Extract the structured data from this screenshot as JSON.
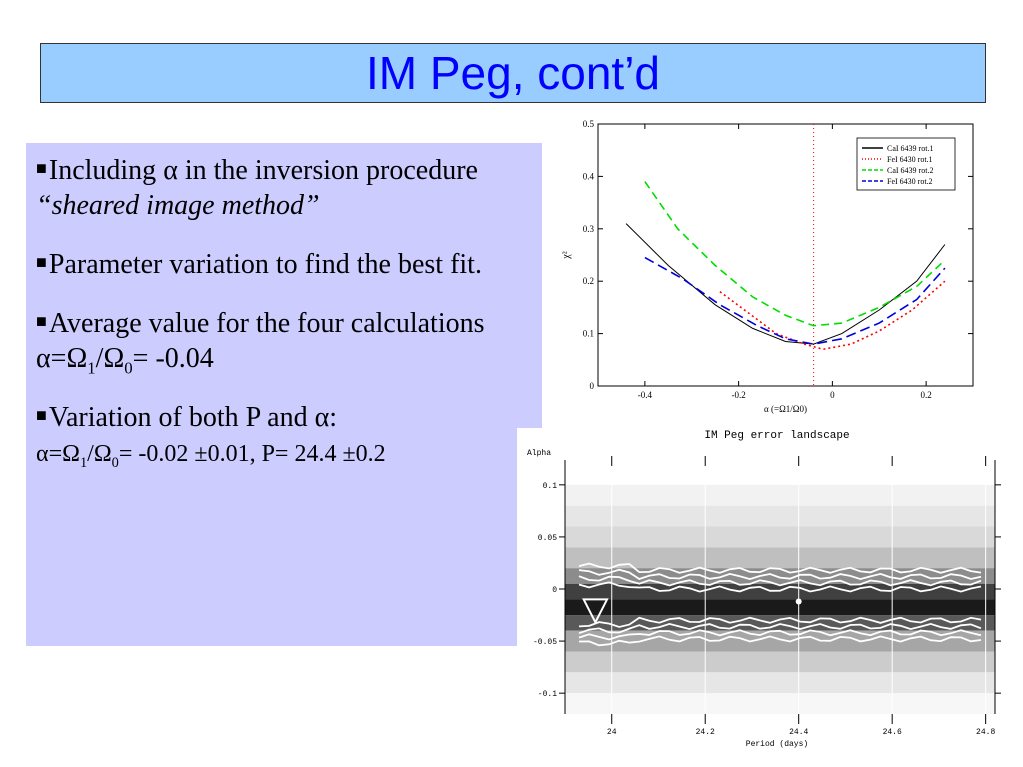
{
  "title": "IM Peg, cont’d",
  "bullets": {
    "b1": {
      "pre": "Including ",
      "alpha": "α",
      "post": " in the inversion procedure",
      "italic": "“sheared image method”"
    },
    "b2": {
      "text": "Parameter variation to find the best fit."
    },
    "b3": {
      "text": "Average value for the four calculations",
      "f_alpha": "α=Ω",
      "f_sub1": "1",
      "f_mid": "/Ω",
      "f_sub0": "0",
      "f_end": "= -0.04"
    },
    "b4": {
      "pre": "Variation of both P and ",
      "alpha": "α",
      "colon": ":",
      "f_alpha": "α=Ω",
      "f_sub1": "1",
      "f_mid": "/Ω",
      "f_sub0": "0",
      "f_end": "= -0.02 ±0.01, P= 24.4 ±0.2"
    }
  },
  "chart_data": [
    {
      "type": "line",
      "title": "",
      "xlabel": "α (=Ω1/Ω0)",
      "ylabel": "χ²",
      "xlim": [
        -0.5,
        0.3
      ],
      "ylim": [
        0,
        0.5
      ],
      "xticks": [
        "-0.4",
        "-0.2",
        "0",
        "0.2"
      ],
      "yticks": [
        "0",
        "0.1",
        "0.2",
        "0.3",
        "0.4",
        "0.5"
      ],
      "vline": -0.04,
      "legend_position": "top-right",
      "series": [
        {
          "name": "CaI 6439 rot.1",
          "color": "#000000",
          "dash": "",
          "x": [
            -0.44,
            -0.35,
            -0.25,
            -0.17,
            -0.1,
            -0.04,
            0.02,
            0.1,
            0.18,
            0.24
          ],
          "y": [
            0.31,
            0.23,
            0.155,
            0.11,
            0.085,
            0.08,
            0.1,
            0.145,
            0.2,
            0.27
          ]
        },
        {
          "name": "FeI 6430 rot.1",
          "color": "#ff0000",
          "dash": "2,3",
          "x": [
            -0.24,
            -0.18,
            -0.12,
            -0.06,
            -0.02,
            0.04,
            0.1,
            0.17,
            0.24
          ],
          "y": [
            0.18,
            0.14,
            0.1,
            0.08,
            0.07,
            0.08,
            0.105,
            0.145,
            0.2
          ]
        },
        {
          "name": "CaI 6439 rot.2",
          "color": "#00dd00",
          "dash": "8,5",
          "x": [
            -0.4,
            -0.33,
            -0.25,
            -0.17,
            -0.1,
            -0.04,
            0.02,
            0.1,
            0.18,
            0.24
          ],
          "y": [
            0.39,
            0.3,
            0.23,
            0.17,
            0.135,
            0.115,
            0.12,
            0.15,
            0.19,
            0.24
          ]
        },
        {
          "name": "FeI 6430 rot.2",
          "color": "#0000dd",
          "dash": "10,5",
          "x": [
            -0.4,
            -0.32,
            -0.24,
            -0.16,
            -0.1,
            -0.04,
            0.02,
            0.1,
            0.18,
            0.24
          ],
          "y": [
            0.245,
            0.205,
            0.155,
            0.115,
            0.09,
            0.08,
            0.09,
            0.12,
            0.165,
            0.225
          ]
        }
      ]
    },
    {
      "type": "heatmap",
      "title": "IM Peg error landscape",
      "xlabel": "Period (days)",
      "ylabel": "Alpha",
      "xlim": [
        23.9,
        24.82
      ],
      "ylim": [
        -0.12,
        0.12
      ],
      "xticks": [
        "24",
        "24.2",
        "24.4",
        "24.6",
        "24.8"
      ],
      "yticks": [
        "0.1",
        "0.05",
        "0",
        "-0.05",
        "-0.1"
      ],
      "bands": [
        {
          "y0": 0.12,
          "y1": 0.1,
          "shade": "#ffffff"
        },
        {
          "y0": 0.1,
          "y1": 0.08,
          "shade": "#f2f2f2"
        },
        {
          "y0": 0.08,
          "y1": 0.06,
          "shade": "#e6e6e6"
        },
        {
          "y0": 0.06,
          "y1": 0.04,
          "shade": "#d9d9d9"
        },
        {
          "y0": 0.04,
          "y1": 0.02,
          "shade": "#bfbfbf"
        },
        {
          "y0": 0.02,
          "y1": 0.005,
          "shade": "#8c8c8c"
        },
        {
          "y0": 0.005,
          "y1": -0.01,
          "shade": "#404040"
        },
        {
          "y0": -0.01,
          "y1": -0.025,
          "shade": "#1a1a1a"
        },
        {
          "y0": -0.025,
          "y1": -0.04,
          "shade": "#595959"
        },
        {
          "y0": -0.04,
          "y1": -0.06,
          "shade": "#a6a6a6"
        },
        {
          "y0": -0.06,
          "y1": -0.08,
          "shade": "#cccccc"
        },
        {
          "y0": -0.08,
          "y1": -0.1,
          "shade": "#e6e6e6"
        },
        {
          "y0": -0.1,
          "y1": -0.12,
          "shade": "#f7f7f7"
        }
      ],
      "contours": [
        0.018,
        0.012,
        0.006,
        0.0,
        -0.03,
        -0.036,
        -0.042,
        -0.048
      ]
    }
  ]
}
